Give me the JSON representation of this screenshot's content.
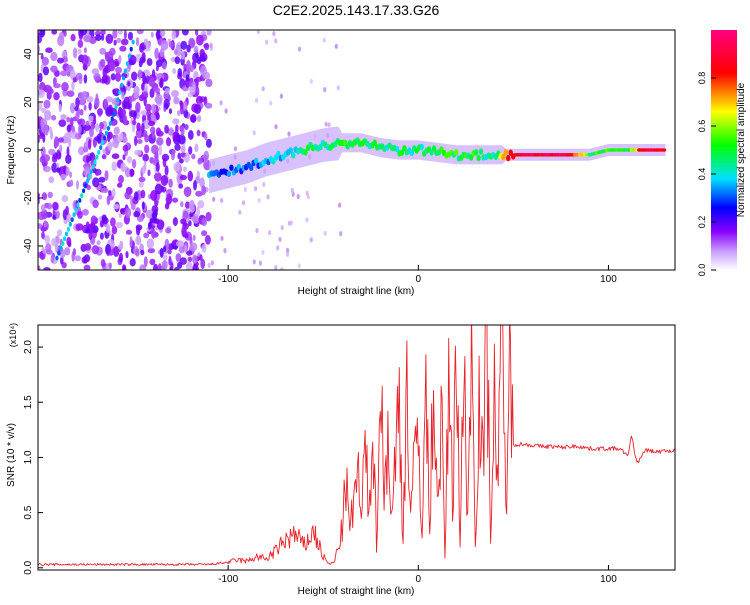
{
  "figure_title": "C2E2.2025.143.17.33.G26",
  "chart_data": [
    {
      "type": "heatmap",
      "title": "C2E2.2025.143.17.33.G26",
      "xlabel": "Height of straight line (km)",
      "ylabel": "Frequency (Hz)",
      "xlim": [
        -200,
        135
      ],
      "ylim": [
        -50,
        50
      ],
      "x_ticks": [
        -100,
        0,
        100
      ],
      "y_ticks": [
        -40,
        -20,
        0,
        20,
        40
      ],
      "grid": false,
      "colorbar": {
        "label": "Normalized spectral amplitude",
        "range": [
          0,
          1
        ],
        "ticks": [
          0.0,
          0.2,
          0.4,
          0.6,
          0.8
        ],
        "colormap": [
          "#ffffff",
          "#8a00ff",
          "#0000ff",
          "#00e0ff",
          "#00ff00",
          "#ffff00",
          "#ff0000",
          "#ff00a0"
        ]
      },
      "features": [
        {
          "name": "diagonal streak",
          "x": [
            -190,
            -180,
            -170,
            -160,
            -150
          ],
          "y": [
            -45,
            -25,
            -5,
            15,
            45
          ],
          "amplitude": 0.35
        },
        {
          "name": "main signal",
          "x": [
            -110,
            -100,
            -90,
            -80,
            -70,
            -60,
            -50,
            -40,
            -30,
            -20,
            -10,
            0,
            10,
            20,
            30,
            40,
            50,
            60,
            70,
            80,
            90,
            100,
            110,
            120,
            130
          ],
          "y": [
            -11,
            -9,
            -7,
            -4,
            -2,
            0,
            2,
            3,
            3,
            1,
            0,
            0,
            -1,
            -2,
            -2,
            -2,
            -2,
            -2,
            -2,
            -2,
            -2,
            0,
            0,
            0,
            0
          ],
          "amplitude": [
            0.3,
            0.3,
            0.3,
            0.35,
            0.4,
            0.45,
            0.45,
            0.5,
            0.5,
            0.45,
            0.45,
            0.45,
            0.5,
            0.5,
            0.5,
            0.45,
            0.9,
            0.9,
            0.9,
            0.9,
            0.5,
            0.5,
            0.5,
            0.9,
            0.9
          ]
        }
      ]
    },
    {
      "type": "line",
      "xlabel": "Height of straight line (km)",
      "ylabel": "SNR (10 * v/v)",
      "y_multiplier": "(x10⁴)",
      "xlim": [
        -200,
        135
      ],
      "ylim": [
        -0.02,
        2.2
      ],
      "x_ticks": [
        -100,
        0,
        100
      ],
      "y_ticks": [
        0.0,
        0.5,
        1.0,
        1.5,
        2.0
      ],
      "y_tick_labels": [
        "0.0",
        "0.5",
        "1.0",
        "1.5",
        "2.0"
      ],
      "grid": false,
      "series": [
        {
          "color": "#e8232a",
          "x": [
            -200,
            -190,
            -180,
            -170,
            -160,
            -150,
            -140,
            -130,
            -120,
            -110,
            -100,
            -95,
            -90,
            -85,
            -80,
            -75,
            -70,
            -65,
            -60,
            -55,
            -50,
            -48,
            -46,
            -44,
            -42,
            -40,
            -38,
            -36,
            -34,
            -32,
            -30,
            -28,
            -26,
            -24,
            -22,
            -20,
            -18,
            -16,
            -14,
            -12,
            -10,
            -8,
            -6,
            -4,
            -2,
            0,
            2,
            4,
            6,
            8,
            10,
            12,
            14,
            16,
            18,
            20,
            22,
            24,
            26,
            28,
            30,
            32,
            34,
            36,
            38,
            40,
            42,
            44,
            46,
            48,
            50,
            55,
            60,
            65,
            70,
            75,
            80,
            85,
            90,
            95,
            100,
            105,
            108,
            110,
            112,
            115,
            120,
            125,
            130,
            135
          ],
          "y": [
            0.03,
            0.03,
            0.03,
            0.03,
            0.03,
            0.03,
            0.03,
            0.03,
            0.03,
            0.03,
            0.05,
            0.07,
            0.06,
            0.1,
            0.08,
            0.15,
            0.25,
            0.3,
            0.2,
            0.33,
            0.1,
            0.05,
            0.03,
            0.06,
            0.2,
            0.35,
            0.8,
            0.3,
            0.6,
            0.9,
            0.4,
            1.1,
            0.5,
            1.4,
            0.2,
            1.85,
            0.6,
            1.3,
            0.4,
            1.0,
            1.5,
            0.3,
            1.7,
            0.5,
            0.9,
            1.2,
            0.4,
            1.6,
            0.3,
            1.9,
            0.5,
            1.4,
            0.1,
            1.7,
            0.6,
            2.2,
            0.2,
            1.8,
            0.5,
            2.0,
            0.3,
            1.6,
            0.9,
            2.15,
            0.4,
            1.5,
            0.8,
            2.1,
            0.6,
            1.7,
            1.12,
            1.12,
            1.11,
            1.1,
            1.1,
            1.09,
            1.1,
            1.1,
            1.08,
            1.08,
            1.08,
            1.08,
            1.05,
            1.0,
            1.2,
            0.95,
            1.07,
            1.05,
            1.06,
            1.06
          ]
        }
      ]
    }
  ]
}
